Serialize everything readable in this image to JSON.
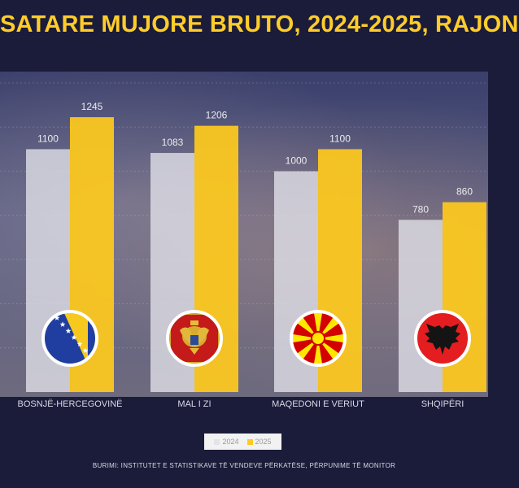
{
  "title": "SATARE MUJORE BRUTO, 2024-2025, RAJON",
  "source": "BURIMI: INSTITUTET E STATISTIKAVE TË VENDEVE PËRKATËSE, PËRPUNIME TË MONITOR",
  "colors": {
    "s2024": "#e3e3ea",
    "s2025": "#ffca1c",
    "category_label": "#d8d8e6",
    "value_label": "#ecebef",
    "background": "#1b1c3a"
  },
  "flags": [
    {
      "icon": "bosnia-herzegovina-flag-icon"
    },
    {
      "icon": "montenegro-flag-icon"
    },
    {
      "icon": "north-macedonia-flag-icon"
    },
    {
      "icon": "albania-flag-icon"
    }
  ],
  "chart_data": {
    "type": "bar",
    "title": "SATARE MUJORE BRUTO, 2024-2025, RAJON",
    "categories": [
      "BOSNJË-HERCEGOVINË",
      "MAL I ZI",
      "MAQEDONI E VERIUT",
      "SHQIPËRI"
    ],
    "series": [
      {
        "name": "2024",
        "values": [
          1100,
          1083,
          1000,
          780
        ]
      },
      {
        "name": "2025",
        "values": [
          1245,
          1206,
          1100,
          860
        ]
      }
    ],
    "value_labels": [
      [
        "1100",
        "1245"
      ],
      [
        "1083",
        "1206"
      ],
      [
        "1000",
        "1100"
      ],
      [
        "780",
        "860"
      ]
    ],
    "ylim": [
      0,
      1400
    ],
    "grid": true,
    "legend": "bottom-center"
  }
}
